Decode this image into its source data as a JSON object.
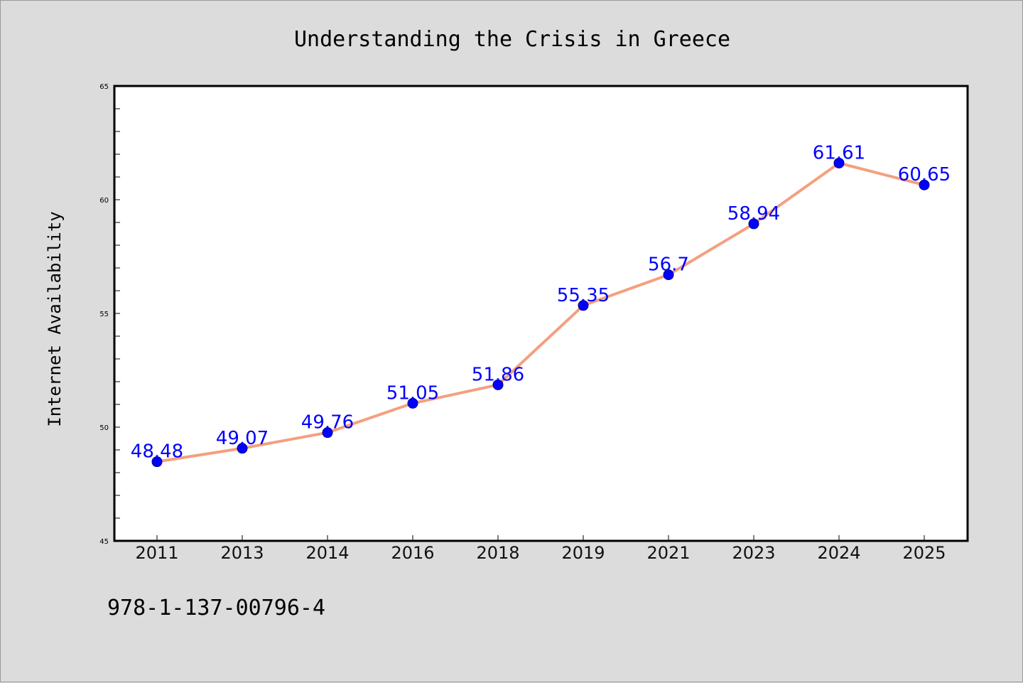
{
  "chart_data": {
    "type": "line",
    "title": "Understanding the Crisis in Greece",
    "xlabel": "",
    "ylabel": "Internet Availability",
    "categories": [
      "2011",
      "2013",
      "2014",
      "2016",
      "2018",
      "2019",
      "2021",
      "2023",
      "2024",
      "2025"
    ],
    "series": [
      {
        "values": [
          48.48,
          49.07,
          49.76,
          51.05,
          51.86,
          55.35,
          56.7,
          58.94,
          61.61,
          60.65
        ],
        "data_labels": [
          "48.48",
          "49.07",
          "49.76",
          "51.05",
          "51.86",
          "55.35",
          "56.7",
          "58.94",
          "61.61",
          "60.65"
        ]
      }
    ],
    "ylim": [
      45,
      65
    ],
    "yticks": [
      "45",
      "50",
      "55",
      "60",
      "65"
    ],
    "grid": false,
    "legend": "none",
    "colors": {
      "line": "#f4a07f",
      "marker": "#0000ff",
      "data_label": "#0000ff",
      "background": "#dcdcdc",
      "plot_area": "#ffffff"
    }
  },
  "footer": {
    "isbn": "978-1-137-00796-4"
  }
}
